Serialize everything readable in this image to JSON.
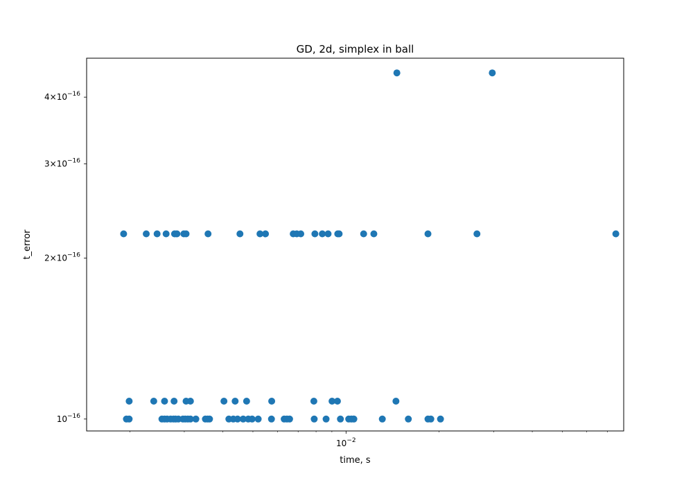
{
  "chart_data": {
    "type": "scatter",
    "title": "GD, 2d, simplex in ball",
    "xlabel": "time, s",
    "ylabel": "t_error",
    "xscale": "log",
    "yscale": "log",
    "xlim": [
      0.00145,
      0.079
    ],
    "ylim": [
      9.5e-17,
      4.73e-16
    ],
    "grid": false,
    "color": "#1f77b4",
    "x_ticks": [
      {
        "value": 0.01,
        "base": "10",
        "exp": "−2"
      }
    ],
    "y_ticks": [
      {
        "value": 1e-16,
        "mant": "",
        "base": "10",
        "exp": "−16"
      },
      {
        "value": 2e-16,
        "mant": "2×",
        "base": "10",
        "exp": "−16"
      },
      {
        "value": 3e-16,
        "mant": "3×",
        "base": "10",
        "exp": "−16"
      },
      {
        "value": 4e-16,
        "mant": "4×",
        "base": "10",
        "exp": "−16"
      }
    ],
    "points": [
      [
        0.0146,
        4.44e-16
      ],
      [
        0.0297,
        4.44e-16
      ],
      [
        0.00191,
        2.22e-16
      ],
      [
        0.00226,
        2.22e-16
      ],
      [
        0.00245,
        2.22e-16
      ],
      [
        0.00262,
        2.22e-16
      ],
      [
        0.00279,
        2.22e-16
      ],
      [
        0.00284,
        2.22e-16
      ],
      [
        0.00299,
        2.22e-16
      ],
      [
        0.00304,
        2.22e-16
      ],
      [
        0.00358,
        2.22e-16
      ],
      [
        0.00454,
        2.22e-16
      ],
      [
        0.00527,
        2.22e-16
      ],
      [
        0.00549,
        2.22e-16
      ],
      [
        0.00675,
        2.22e-16
      ],
      [
        0.00693,
        2.22e-16
      ],
      [
        0.00714,
        2.22e-16
      ],
      [
        0.00793,
        2.22e-16
      ],
      [
        0.00838,
        2.22e-16
      ],
      [
        0.00875,
        2.22e-16
      ],
      [
        0.0094,
        2.22e-16
      ],
      [
        0.0095,
        2.22e-16
      ],
      [
        0.0114,
        2.22e-16
      ],
      [
        0.0123,
        2.22e-16
      ],
      [
        0.0184,
        2.22e-16
      ],
      [
        0.0265,
        2.22e-16
      ],
      [
        0.0745,
        2.22e-16
      ],
      [
        0.00199,
        1.08e-16
      ],
      [
        0.00239,
        1.08e-16
      ],
      [
        0.00259,
        1.08e-16
      ],
      [
        0.00278,
        1.08e-16
      ],
      [
        0.00304,
        1.08e-16
      ],
      [
        0.00314,
        1.08e-16
      ],
      [
        0.00403,
        1.08e-16
      ],
      [
        0.00438,
        1.08e-16
      ],
      [
        0.00477,
        1.08e-16
      ],
      [
        0.00575,
        1.08e-16
      ],
      [
        0.00787,
        1.08e-16
      ],
      [
        0.00901,
        1.08e-16
      ],
      [
        0.00938,
        1.08e-16
      ],
      [
        0.0145,
        1.08e-16
      ],
      [
        0.00195,
        1e-16
      ],
      [
        0.00199,
        1e-16
      ],
      [
        0.00254,
        1e-16
      ],
      [
        0.00259,
        1e-16
      ],
      [
        0.00264,
        1e-16
      ],
      [
        0.00271,
        1e-16
      ],
      [
        0.00277,
        1e-16
      ],
      [
        0.00281,
        1e-16
      ],
      [
        0.00287,
        1e-16
      ],
      [
        0.00297,
        1e-16
      ],
      [
        0.00302,
        1e-16
      ],
      [
        0.00308,
        1e-16
      ],
      [
        0.00314,
        1e-16
      ],
      [
        0.00327,
        1e-16
      ],
      [
        0.00351,
        1e-16
      ],
      [
        0.00357,
        1e-16
      ],
      [
        0.00362,
        1e-16
      ],
      [
        0.00418,
        1e-16
      ],
      [
        0.00432,
        1e-16
      ],
      [
        0.00446,
        1e-16
      ],
      [
        0.00465,
        1e-16
      ],
      [
        0.00483,
        1e-16
      ],
      [
        0.00497,
        1e-16
      ],
      [
        0.0052,
        1e-16
      ],
      [
        0.00574,
        1e-16
      ],
      [
        0.00631,
        1e-16
      ],
      [
        0.00644,
        1e-16
      ],
      [
        0.00657,
        1e-16
      ],
      [
        0.00789,
        1e-16
      ],
      [
        0.00862,
        1e-16
      ],
      [
        0.00959,
        1e-16
      ],
      [
        0.0102,
        1e-16
      ],
      [
        0.0104,
        1e-16
      ],
      [
        0.0106,
        1e-16
      ],
      [
        0.0131,
        1e-16
      ],
      [
        0.0159,
        1e-16
      ],
      [
        0.0184,
        1e-16
      ],
      [
        0.0188,
        1e-16
      ],
      [
        0.0202,
        1e-16
      ]
    ]
  }
}
